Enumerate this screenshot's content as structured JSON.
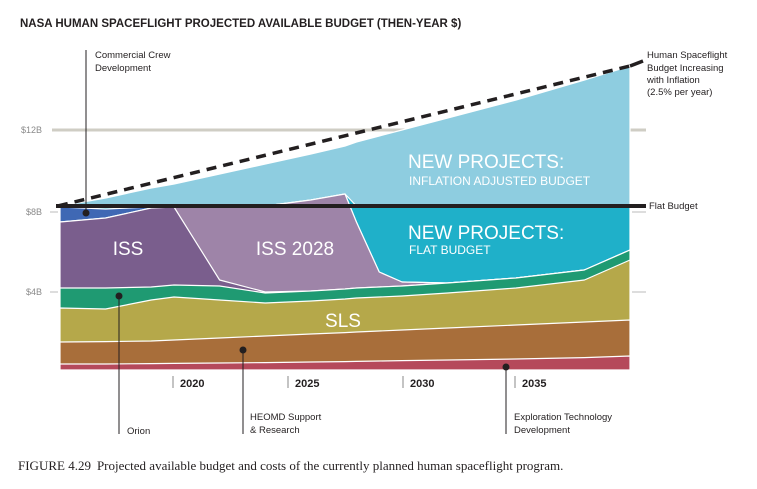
{
  "chart_data": {
    "type": "area",
    "title": "NASA HUMAN SPACEFLIGHT PROJECTED AVAILABLE BUDGET (THEN-YEAR $)",
    "xlabel": "",
    "ylabel": "",
    "xlim": [
      2015,
      2040
    ],
    "ylim": [
      0,
      16
    ],
    "x_ticks": [
      2020,
      2025,
      2030,
      2035
    ],
    "x_tick_labels": [
      "2020",
      "2025",
      "2030",
      "2035"
    ],
    "y_ticks": [
      4,
      8,
      12
    ],
    "y_tick_labels": [
      "$4B",
      "$8B",
      "$12B"
    ],
    "grid": false,
    "x": [
      2015,
      2017,
      2019,
      2020,
      2022,
      2024,
      2026,
      2027.5,
      2028,
      2029,
      2030,
      2032,
      2035,
      2038,
      2040
    ],
    "stacked_tops": [
      {
        "name": "Exploration Technology Development",
        "color": "#b5495b",
        "values": [
          0.4,
          0.4,
          0.42,
          0.43,
          0.45,
          0.47,
          0.5,
          0.52,
          0.53,
          0.55,
          0.57,
          0.6,
          0.65,
          0.72,
          0.8
        ]
      },
      {
        "name": "HEOMD Support & Research",
        "color": "#a86e3a",
        "values": [
          1.5,
          1.52,
          1.55,
          1.6,
          1.7,
          1.8,
          1.9,
          1.97,
          2.0,
          2.05,
          2.1,
          2.2,
          2.35,
          2.5,
          2.6
        ]
      },
      {
        "name": "SLS",
        "color": "#b5a84a",
        "values": [
          3.2,
          3.15,
          3.6,
          3.75,
          3.6,
          3.45,
          3.55,
          3.65,
          3.7,
          3.75,
          3.8,
          3.95,
          4.2,
          4.6,
          5.6
        ]
      },
      {
        "name": "Orion",
        "color": "#1f9a72",
        "values": [
          4.2,
          4.2,
          4.25,
          4.35,
          4.3,
          3.95,
          4.05,
          4.15,
          4.2,
          4.25,
          4.3,
          4.45,
          4.7,
          5.1,
          6.1
        ]
      },
      {
        "name": "ISS",
        "color": "#7a5e8d",
        "values": [
          7.5,
          7.7,
          8.2,
          8.25,
          4.6,
          4.0,
          4.05,
          4.15,
          4.2,
          4.25,
          4.3,
          4.45,
          4.7,
          5.1,
          6.1
        ]
      },
      {
        "name": "ISS 2028",
        "color": "#9e84a8",
        "values": [
          7.5,
          7.7,
          8.2,
          8.25,
          8.25,
          8.3,
          8.6,
          8.9,
          7.5,
          5.0,
          4.5,
          4.45,
          4.7,
          5.1,
          6.1
        ]
      },
      {
        "name": "Commercial Crew Development",
        "color": "#3f68b4",
        "values": [
          8.25,
          8.15,
          8.25,
          8.25,
          8.25,
          8.3,
          8.6,
          8.9,
          7.5,
          5.0,
          4.5,
          4.45,
          4.7,
          5.1,
          6.1
        ]
      },
      {
        "name": "New Projects: Flat Budget",
        "color": "#1fb0c9",
        "values": [
          8.3,
          8.3,
          8.3,
          8.3,
          8.3,
          8.3,
          8.6,
          8.9,
          8.3,
          8.3,
          8.3,
          8.3,
          8.3,
          8.3,
          8.3
        ]
      },
      {
        "name": "New Projects: Inflation Adjusted Budget",
        "color": "#8ecde0",
        "values": [
          8.3,
          8.7,
          9.2,
          9.4,
          9.9,
          10.4,
          10.9,
          11.3,
          11.5,
          11.8,
          12.1,
          12.7,
          13.6,
          14.6,
          15.3
        ]
      }
    ],
    "lines": [
      {
        "name": "Flat Budget",
        "style": "solid",
        "color": "#231f20",
        "x": [
          2015,
          2040
        ],
        "values": [
          8.3,
          8.3
        ]
      },
      {
        "name": "Human Spaceflight Budget Increasing with Inflation (2.5% per year)",
        "style": "dashed",
        "color": "#231f20",
        "x": [
          2015,
          2040
        ],
        "values": [
          8.3,
          15.3
        ]
      }
    ],
    "inline_labels": [
      {
        "text": "ISS"
      },
      {
        "text": "ISS 2028"
      },
      {
        "text": "SLS"
      },
      {
        "text": "NEW PROJECTS:",
        "sub": "INFLATION ADJUSTED BUDGET"
      },
      {
        "text": "NEW PROJECTS:",
        "sub": "FLAT BUDGET"
      }
    ],
    "annotations": {
      "commercial_crew": [
        "Commercial Crew",
        "Development"
      ],
      "inflation": [
        "Human Spaceflight",
        "Budget Increasing",
        "with Inflation",
        "(2.5% per year)"
      ],
      "flat_budget": "Flat Budget",
      "orion": "Orion",
      "heomd": [
        "HEOMD Support",
        "& Research"
      ],
      "exploration": [
        "Exploration Technology",
        "Development"
      ]
    },
    "reference_line_12b_color": "#cfcdc4"
  },
  "caption": {
    "label": "FIGURE 4.29",
    "text": "Projected available budget and costs of the currently planned human spaceflight program."
  }
}
